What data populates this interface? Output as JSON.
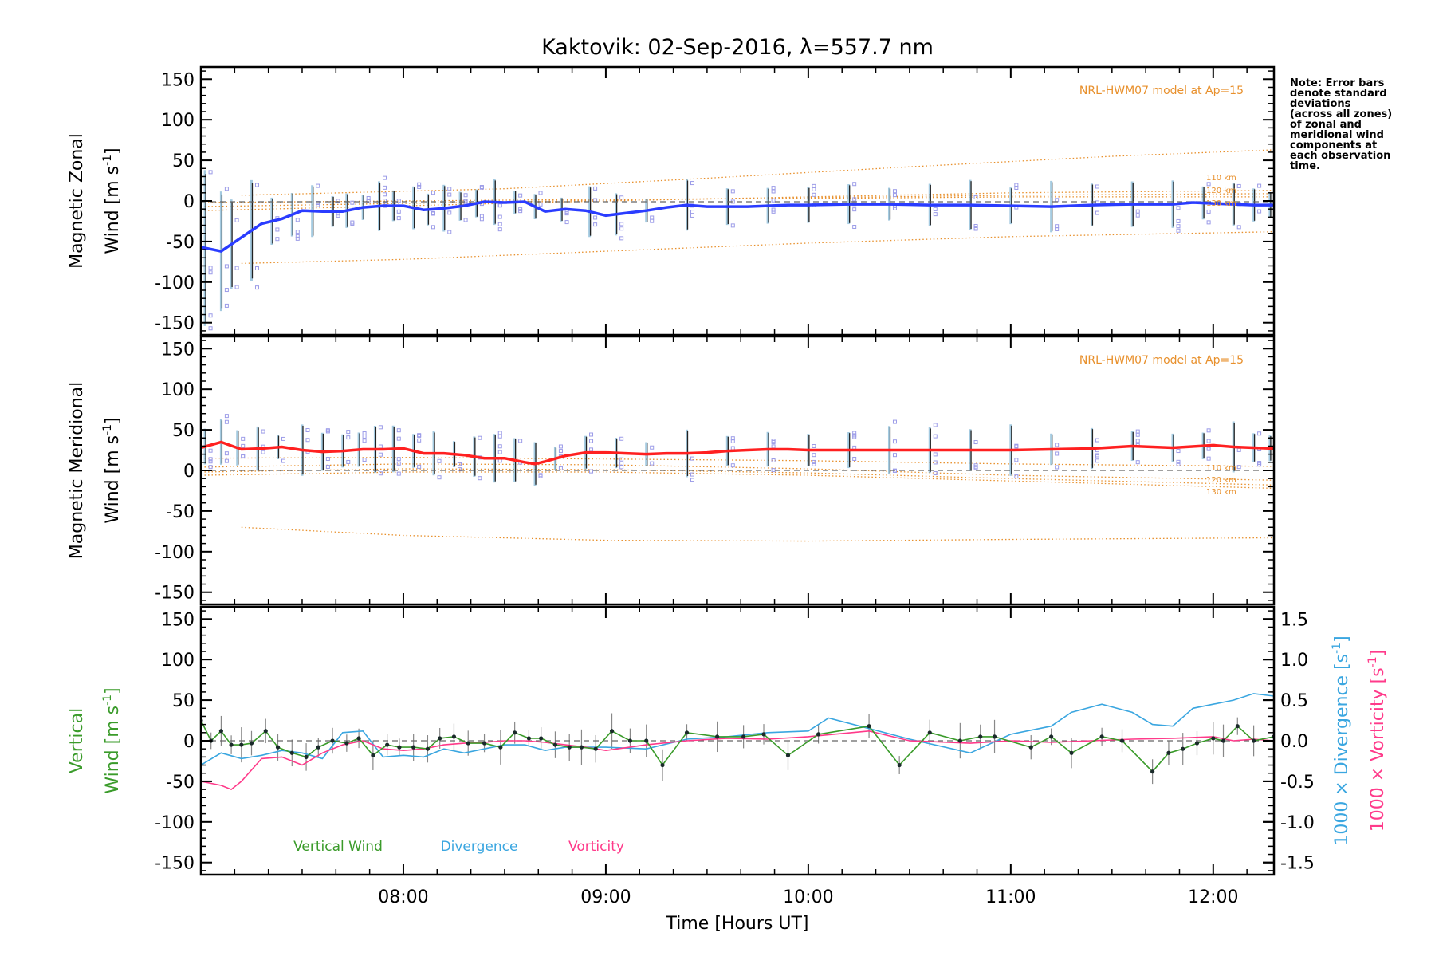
{
  "chart_data": [
    {
      "type": "line",
      "title": "Kaktovik: 02-Sep-2016, λ=557.7 nm",
      "ylabel_line1": "Magnetic Zonal",
      "ylabel_line2": "Wind [m s",
      "ylabel_sup": "-1",
      "ylabel_end": "]",
      "ylim": [
        -165,
        165
      ],
      "yticks": [
        -150,
        -100,
        -50,
        0,
        50,
        100,
        150
      ],
      "xlim": [
        7.0,
        12.3
      ],
      "model_label": "NRL-HWM07 model at Ap=15",
      "altitude_labels": [
        "110 km",
        "120 km",
        "130 km"
      ],
      "note": [
        "Note: Error bars",
        "denote standard",
        "deviations",
        "(across all zones)",
        "of zonal and",
        "meridional wind",
        "components at",
        "each observation",
        "time."
      ],
      "series": [
        {
          "color": "#2a3cff",
          "x": [
            7.0,
            7.1,
            7.2,
            7.3,
            7.4,
            7.5,
            7.6,
            7.7,
            7.8,
            7.9,
            8.0,
            8.1,
            8.2,
            8.3,
            8.4,
            8.5,
            8.6,
            8.7,
            8.8,
            8.9,
            9.0,
            9.1,
            9.2,
            9.3,
            9.4,
            9.5,
            9.6,
            9.7,
            9.8,
            9.9,
            10.0,
            10.2,
            10.4,
            10.6,
            10.8,
            11.0,
            11.2,
            11.4,
            11.6,
            11.8,
            11.9,
            12.0,
            12.1,
            12.2,
            12.3
          ],
          "values": [
            -57,
            -62,
            -45,
            -28,
            -22,
            -12,
            -13,
            -13,
            -8,
            -6,
            -6,
            -11,
            -9,
            -6,
            -1,
            -2,
            -1,
            -13,
            -10,
            -12,
            -18,
            -15,
            -12,
            -8,
            -5,
            -7,
            -7,
            -7,
            -6,
            -5,
            -5,
            -4,
            -4,
            -5,
            -5,
            -6,
            -7,
            -5,
            -4,
            -4,
            -2,
            -3,
            -4,
            -5,
            -5
          ]
        }
      ],
      "error_bars_at": [
        7.02,
        7.1,
        7.15,
        7.25,
        7.35,
        7.45,
        7.55,
        7.65,
        7.72,
        7.8,
        7.88,
        7.95,
        8.05,
        8.12,
        8.2,
        8.28,
        8.36,
        8.45,
        8.55,
        8.65,
        8.78,
        8.92,
        9.05,
        9.2,
        9.4,
        9.6,
        9.8,
        10.0,
        10.2,
        10.4,
        10.6,
        10.8,
        11.0,
        11.2,
        11.4,
        11.6,
        11.8,
        11.95,
        12.1,
        12.2,
        12.28
      ],
      "model_curves": [
        {
          "x": [
            7.2,
            8.5,
            9.5,
            10.5,
            11.5,
            12.3
          ],
          "values": [
            7,
            15,
            28,
            42,
            55,
            63
          ]
        },
        {
          "x": [
            7.0,
            8.0,
            9.0,
            10.0,
            11.0,
            12.3
          ],
          "values": [
            -12,
            -6,
            0,
            5,
            10,
            13
          ]
        },
        {
          "x": [
            7.0,
            8.0,
            9.0,
            10.0,
            11.0,
            12.3
          ],
          "values": [
            -7,
            -3,
            1,
            4,
            7,
            9
          ]
        },
        {
          "x": [
            7.0,
            8.0,
            9.0,
            10.0,
            11.0,
            12.3
          ],
          "values": [
            -2,
            0,
            2,
            3,
            5,
            5
          ]
        },
        {
          "x": [
            7.2,
            8.0,
            9.0,
            10.0,
            11.0,
            12.3
          ],
          "values": [
            -77,
            -72,
            -62,
            -52,
            -44,
            -38
          ]
        }
      ]
    },
    {
      "type": "line",
      "ylabel_line1": "Magnetic Meridional",
      "ylabel_line2": "Wind [m s",
      "ylabel_sup": "-1",
      "ylabel_end": "]",
      "ylim": [
        -165,
        165
      ],
      "yticks": [
        -150,
        -100,
        -50,
        0,
        50,
        100,
        150
      ],
      "xlim": [
        7.0,
        12.3
      ],
      "model_label": "NRL-HWM07 model at Ap=15",
      "altitude_labels": [
        "110 km",
        "120 km",
        "130 km"
      ],
      "series": [
        {
          "color": "#ff2020",
          "x": [
            7.0,
            7.1,
            7.2,
            7.3,
            7.4,
            7.5,
            7.6,
            7.7,
            7.8,
            7.9,
            8.0,
            8.1,
            8.2,
            8.3,
            8.4,
            8.5,
            8.6,
            8.65,
            8.7,
            8.8,
            8.9,
            9.0,
            9.1,
            9.2,
            9.3,
            9.4,
            9.5,
            9.6,
            9.7,
            9.8,
            9.9,
            10.0,
            10.2,
            10.4,
            10.6,
            10.8,
            11.0,
            11.2,
            11.4,
            11.6,
            11.8,
            12.0,
            12.1,
            12.2,
            12.3
          ],
          "values": [
            28,
            35,
            26,
            27,
            29,
            25,
            23,
            24,
            26,
            26,
            27,
            21,
            21,
            19,
            15,
            15,
            10,
            8,
            11,
            18,
            22,
            22,
            21,
            20,
            21,
            21,
            22,
            24,
            25,
            26,
            26,
            25,
            25,
            25,
            25,
            25,
            25,
            26,
            27,
            30,
            28,
            31,
            29,
            28,
            27
          ]
        }
      ],
      "error_bars_at": [
        7.02,
        7.1,
        7.18,
        7.28,
        7.38,
        7.5,
        7.6,
        7.7,
        7.78,
        7.86,
        7.95,
        8.05,
        8.15,
        8.25,
        8.35,
        8.45,
        8.55,
        8.65,
        8.75,
        8.9,
        9.05,
        9.2,
        9.4,
        9.6,
        9.8,
        10.0,
        10.2,
        10.4,
        10.6,
        10.8,
        11.0,
        11.2,
        11.4,
        11.6,
        11.8,
        11.95,
        12.1,
        12.2,
        12.28
      ],
      "model_curves": [
        {
          "x": [
            7.0,
            8.0,
            9.0,
            10.0,
            11.0,
            12.3
          ],
          "values": [
            15,
            16,
            14,
            12,
            8,
            5
          ]
        },
        {
          "x": [
            7.0,
            8.0,
            9.0,
            10.0,
            11.0,
            12.3
          ],
          "values": [
            4,
            8,
            7,
            2,
            -6,
            -12
          ]
        },
        {
          "x": [
            7.0,
            8.0,
            9.0,
            10.0,
            11.0,
            12.3
          ],
          "values": [
            -2,
            2,
            1,
            -3,
            -10,
            -18
          ]
        },
        {
          "x": [
            7.0,
            8.0,
            9.0,
            10.0,
            11.0,
            12.3
          ],
          "values": [
            -6,
            -2,
            -2,
            -6,
            -13,
            -22
          ]
        },
        {
          "x": [
            7.2,
            8.0,
            9.0,
            10.0,
            11.0,
            12.3
          ],
          "values": [
            -70,
            -80,
            -86,
            -87,
            -85,
            -83
          ]
        }
      ]
    },
    {
      "type": "line",
      "ylabel_line1": "Vertical",
      "ylabel_line2": "Wind [m s",
      "ylabel_sup": "-1",
      "ylabel_end": "]",
      "ylim": [
        -165,
        165
      ],
      "yticks": [
        -150,
        -100,
        -50,
        0,
        50,
        100,
        150
      ],
      "y2lim": [
        -1.65,
        1.65
      ],
      "y2ticks": [
        -1.5,
        -1.0,
        -0.5,
        0.0,
        0.5,
        1.0,
        1.5
      ],
      "y2label_div": "1000 × Divergence [s",
      "y2label_vor": "1000 × Vorticity [s",
      "y2label_sup": "-1",
      "y2label_end": "]",
      "xlim": [
        7.0,
        12.3
      ],
      "xticks": [
        "08:00",
        "09:00",
        "10:00",
        "11:00",
        "12:00"
      ],
      "xtick_values": [
        8,
        9,
        10,
        11,
        12
      ],
      "xlabel": "Time [Hours UT]",
      "series": [
        {
          "name": "Vertical Wind",
          "color": "#3a9b2a",
          "x": [
            7.0,
            7.05,
            7.1,
            7.15,
            7.2,
            7.25,
            7.32,
            7.38,
            7.45,
            7.52,
            7.58,
            7.65,
            7.72,
            7.78,
            7.85,
            7.92,
            7.98,
            8.05,
            8.12,
            8.18,
            8.25,
            8.32,
            8.4,
            8.48,
            8.55,
            8.62,
            8.68,
            8.75,
            8.82,
            8.88,
            8.95,
            9.03,
            9.12,
            9.2,
            9.28,
            9.4,
            9.55,
            9.68,
            9.78,
            9.9,
            10.05,
            10.3,
            10.45,
            10.6,
            10.75,
            10.85,
            10.92,
            11.1,
            11.2,
            11.3,
            11.45,
            11.55,
            11.7,
            11.78,
            11.85,
            11.92,
            12.0,
            12.05,
            12.12,
            12.2,
            12.3
          ],
          "values": [
            25,
            0,
            12,
            -5,
            -5,
            -3,
            12,
            -8,
            -15,
            -20,
            -8,
            0,
            -3,
            3,
            -18,
            -5,
            -8,
            -8,
            -10,
            3,
            5,
            -3,
            -3,
            -8,
            10,
            3,
            3,
            -5,
            -8,
            -8,
            -10,
            12,
            0,
            0,
            -30,
            10,
            5,
            5,
            8,
            -18,
            8,
            18,
            -30,
            10,
            0,
            5,
            5,
            -8,
            5,
            -15,
            5,
            0,
            -38,
            -15,
            -10,
            -3,
            3,
            0,
            18,
            0,
            5
          ]
        },
        {
          "name": "Divergence",
          "color": "#3aa6e0",
          "x": [
            7.0,
            7.1,
            7.2,
            7.3,
            7.4,
            7.5,
            7.6,
            7.7,
            7.8,
            7.9,
            8.0,
            8.1,
            8.2,
            8.3,
            8.4,
            8.5,
            8.6,
            8.7,
            8.8,
            8.9,
            9.0,
            9.2,
            9.4,
            9.6,
            9.8,
            10.0,
            10.1,
            10.3,
            10.5,
            10.8,
            11.0,
            11.2,
            11.3,
            11.45,
            11.6,
            11.7,
            11.8,
            11.9,
            12.0,
            12.1,
            12.2,
            12.3
          ],
          "values": [
            -30,
            -15,
            -22,
            -18,
            -12,
            -15,
            -22,
            10,
            12,
            -20,
            -18,
            -20,
            -10,
            -15,
            -10,
            -5,
            -5,
            -12,
            -8,
            -8,
            -8,
            -10,
            2,
            5,
            10,
            12,
            28,
            15,
            2,
            -15,
            8,
            18,
            35,
            45,
            35,
            20,
            18,
            40,
            45,
            50,
            58,
            55
          ]
        },
        {
          "name": "Vorticity",
          "color": "#ff3a8a",
          "x": [
            7.0,
            7.1,
            7.15,
            7.2,
            7.3,
            7.4,
            7.5,
            7.6,
            7.7,
            7.8,
            7.9,
            8.0,
            8.1,
            8.2,
            8.3,
            8.4,
            8.5,
            8.6,
            8.7,
            8.8,
            8.9,
            9.0,
            9.2,
            9.4,
            9.6,
            9.8,
            10.0,
            10.3,
            10.5,
            10.8,
            11.0,
            11.2,
            11.4,
            11.6,
            11.8,
            12.0,
            12.1,
            12.2,
            12.3
          ],
          "values": [
            -50,
            -55,
            -60,
            -50,
            -22,
            -20,
            -30,
            -15,
            -5,
            0,
            -10,
            -12,
            -10,
            -5,
            -3,
            -2,
            0,
            0,
            -2,
            -5,
            -8,
            -12,
            -5,
            0,
            3,
            2,
            5,
            12,
            0,
            -3,
            0,
            -2,
            0,
            2,
            3,
            5,
            0,
            2,
            0
          ]
        }
      ]
    }
  ]
}
